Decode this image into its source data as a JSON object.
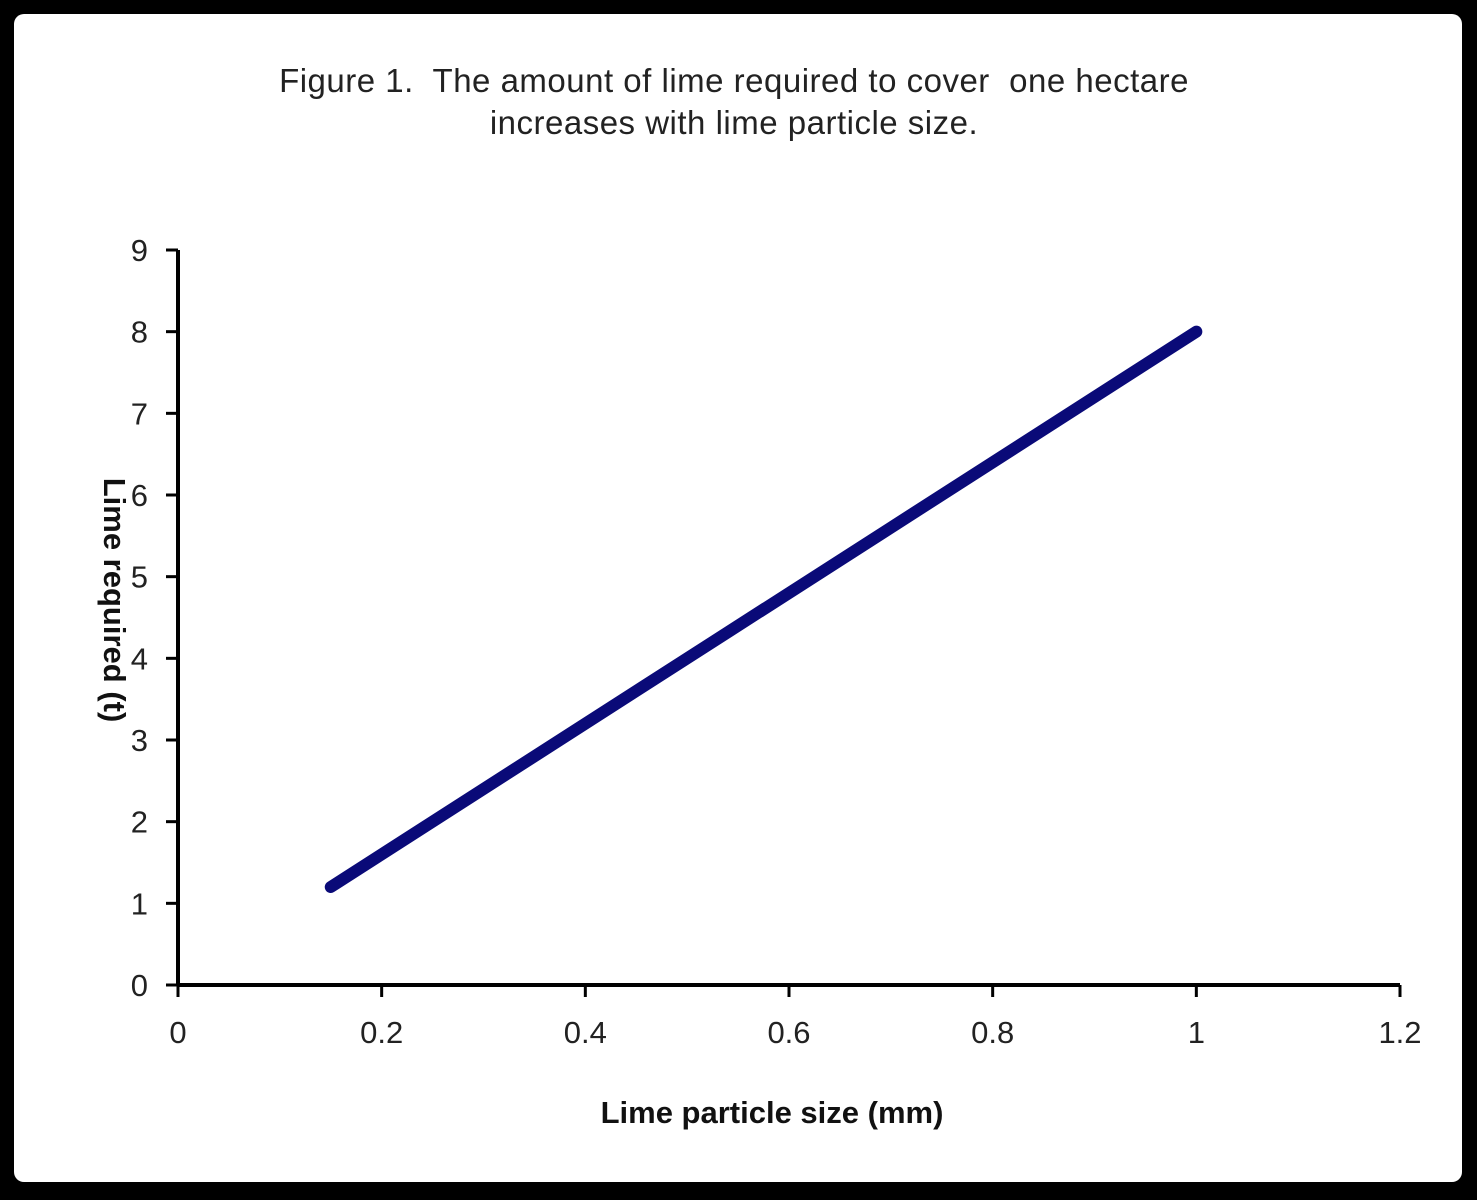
{
  "chart_data": {
    "type": "line",
    "title": "Figure 1.  The amount of lime required to cover  one hectare",
    "subtitle": "increases with lime particle size.",
    "xlabel": "Lime particle size  (mm)",
    "ylabel": "Lime required (t)",
    "xlim": [
      0,
      1.2
    ],
    "ylim": [
      0,
      9
    ],
    "x_ticks": [
      "0",
      "0.2",
      "0.4",
      "0.6",
      "0.8",
      "1",
      "1.2"
    ],
    "y_ticks": [
      "0",
      "1",
      "2",
      "3",
      "4",
      "5",
      "6",
      "7",
      "8",
      "9"
    ],
    "grid": false,
    "legend": "none",
    "series": [
      {
        "color": "#0a0a78",
        "points": [
          [
            0.15,
            1.2
          ],
          [
            1.0,
            8.0
          ]
        ]
      }
    ]
  },
  "colors": {
    "frame_border": "#000000",
    "background": "#ffffff",
    "axis": "#000000",
    "line": "#0a0a78"
  }
}
